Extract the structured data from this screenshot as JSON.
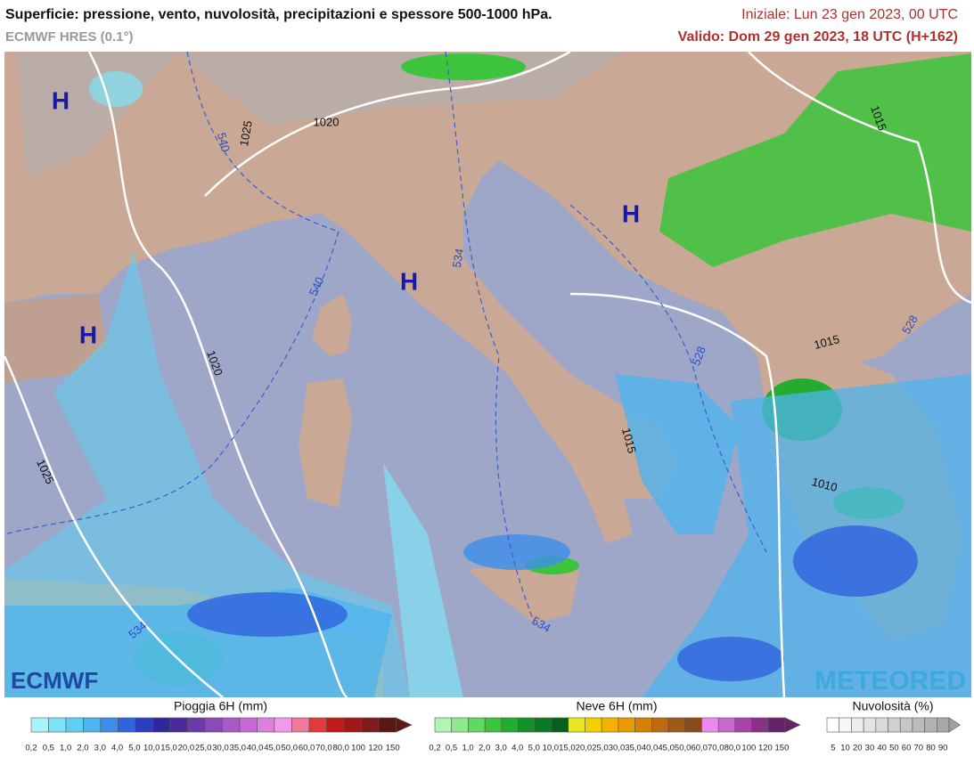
{
  "header": {
    "title": "Superficie: pressione, vento, nuvolosità, precipitazioni e spessore 500-1000 hPa.",
    "model": "ECMWF HRES (0.1°)",
    "initial": "Iniziale: Lun 23 gen 2023, 00 UTC",
    "valid": "Valido: Dom 29 gen 2023, 18 UTC (H+162)"
  },
  "map": {
    "highs": [
      "H",
      "H",
      "H",
      "H"
    ],
    "isobars": [
      "1025",
      "1020",
      "1020",
      "1025",
      "1015",
      "1015",
      "1015",
      "1010"
    ],
    "thickness": [
      "540",
      "540",
      "534",
      "528",
      "528",
      "534",
      "534"
    ],
    "logos": [
      "ECMWF",
      "METEORED"
    ]
  },
  "legends": [
    {
      "title": "Pioggia 6H (mm)",
      "labels": [
        "0,2",
        "0,5",
        "1,0",
        "2,0",
        "3,0",
        "4,0",
        "5,0",
        "10,0",
        "15,0",
        "20,0",
        "25,0",
        "30,0",
        "35,0",
        "40,0",
        "45,0",
        "50,0",
        "60,0",
        "70,0",
        "80,0",
        "100",
        "120",
        "150"
      ],
      "colors": [
        "#a8f2fb",
        "#7fe3f7",
        "#5fcff3",
        "#4fb4ee",
        "#3d8ee8",
        "#2f63df",
        "#2a3fbf",
        "#32279a",
        "#4a2a99",
        "#6a3aa8",
        "#8a4ab8",
        "#a85ac6",
        "#c46ad2",
        "#de80de",
        "#f19be8",
        "#f07a9a",
        "#e03a3a",
        "#c21a1a",
        "#a01818",
        "#7e1a1a",
        "#5c1616"
      ]
    },
    {
      "title": "Neve 6H (mm)",
      "labels": [
        "0,2",
        "0,5",
        "1,0",
        "2,0",
        "3,0",
        "4,0",
        "5,0",
        "10,0",
        "15,0",
        "20,0",
        "25,0",
        "30,0",
        "35,0",
        "40,0",
        "45,0",
        "50,0",
        "60,0",
        "70,0",
        "80,0",
        "100",
        "120",
        "150"
      ],
      "colors": [
        "#b2f5b2",
        "#8ee88e",
        "#62d862",
        "#3cc43c",
        "#22ad2f",
        "#14922a",
        "#0b7a24",
        "#06601e",
        "#e8e820",
        "#f5d000",
        "#f2b200",
        "#e89a00",
        "#d48000",
        "#bb6a10",
        "#a05a18",
        "#8a4a1a",
        "#ee88ee",
        "#cc66cc",
        "#aa44aa",
        "#883388",
        "#662266"
      ]
    },
    {
      "title": "Nuvolosità (%)",
      "labels": [
        "5",
        "10",
        "20",
        "30",
        "40",
        "50",
        "60",
        "70",
        "80",
        "90"
      ],
      "colors": [
        "#ffffff",
        "#f7f7f7",
        "#eeeeee",
        "#e4e4e4",
        "#dadada",
        "#d0d0d0",
        "#c6c6c6",
        "#bcbcbc",
        "#b2b2b2",
        "#a8a8a8"
      ]
    }
  ]
}
